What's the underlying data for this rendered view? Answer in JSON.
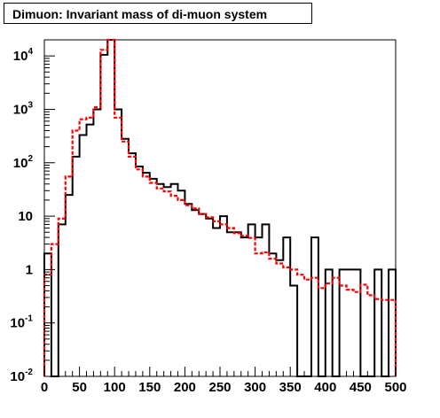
{
  "title": "Dimuon: Invariant mass of di-muon system",
  "chart_data": {
    "type": "histogram",
    "title": "Dimuon: Invariant mass of di-muon system",
    "xlabel": "",
    "ylabel": "",
    "xlim": [
      0,
      500
    ],
    "ylim": [
      0.01,
      20000
    ],
    "yscale": "log",
    "grid": false,
    "bin_edges": [
      0,
      10,
      20,
      30,
      40,
      50,
      60,
      70,
      80,
      90,
      100,
      110,
      120,
      130,
      140,
      150,
      160,
      170,
      180,
      190,
      200,
      210,
      220,
      230,
      240,
      250,
      260,
      270,
      280,
      290,
      300,
      310,
      320,
      330,
      340,
      350,
      360,
      370,
      380,
      390,
      400,
      410,
      420,
      430,
      440,
      450,
      460,
      470,
      480,
      490,
      500
    ],
    "x_ticks": [
      0,
      50,
      100,
      150,
      200,
      250,
      300,
      350,
      400,
      450,
      500
    ],
    "y_ticks": [
      {
        "value": 0.01,
        "base": "10",
        "exp": "-2",
        "label": ""
      },
      {
        "value": 0.1,
        "base": "10",
        "exp": "-1",
        "label": ""
      },
      {
        "value": 1,
        "base": "",
        "exp": "",
        "label": "1"
      },
      {
        "value": 10,
        "base": "",
        "exp": "",
        "label": "10"
      },
      {
        "value": 100,
        "base": "10",
        "exp": "2",
        "label": ""
      },
      {
        "value": 1000,
        "base": "10",
        "exp": "3",
        "label": ""
      },
      {
        "value": 10000,
        "base": "10",
        "exp": "4",
        "label": ""
      }
    ],
    "series": [
      {
        "color": "#000000",
        "style": "solid",
        "values": [
          2,
          0,
          7,
          25,
          130,
          330,
          520,
          1000,
          10500,
          20000,
          1000,
          280,
          150,
          85,
          65,
          50,
          40,
          35,
          40,
          30,
          17,
          13,
          11,
          9,
          6,
          10,
          5,
          5,
          4,
          7,
          4,
          7,
          2,
          1.5,
          4,
          0.5,
          0.01,
          0.01,
          4,
          0.01,
          1,
          0.01,
          1,
          1,
          1,
          0.01,
          0.01,
          1,
          0.01,
          1
        ]
      },
      {
        "color": "#ff0000",
        "style": "dashed",
        "values": [
          0.8,
          3,
          9,
          55,
          400,
          650,
          700,
          1100,
          13000,
          20000,
          700,
          250,
          130,
          75,
          55,
          42,
          33,
          29,
          24,
          20,
          16,
          14,
          11,
          9.5,
          8,
          7,
          6,
          4.8,
          4.3,
          3.9,
          2,
          2.1,
          1.6,
          1.3,
          1.1,
          1,
          0.8,
          0.65,
          0.7,
          0.45,
          0.55,
          0.7,
          0.5,
          0.42,
          0.38,
          0.52,
          0.33,
          0.28,
          0.27,
          0.27
        ]
      }
    ]
  }
}
